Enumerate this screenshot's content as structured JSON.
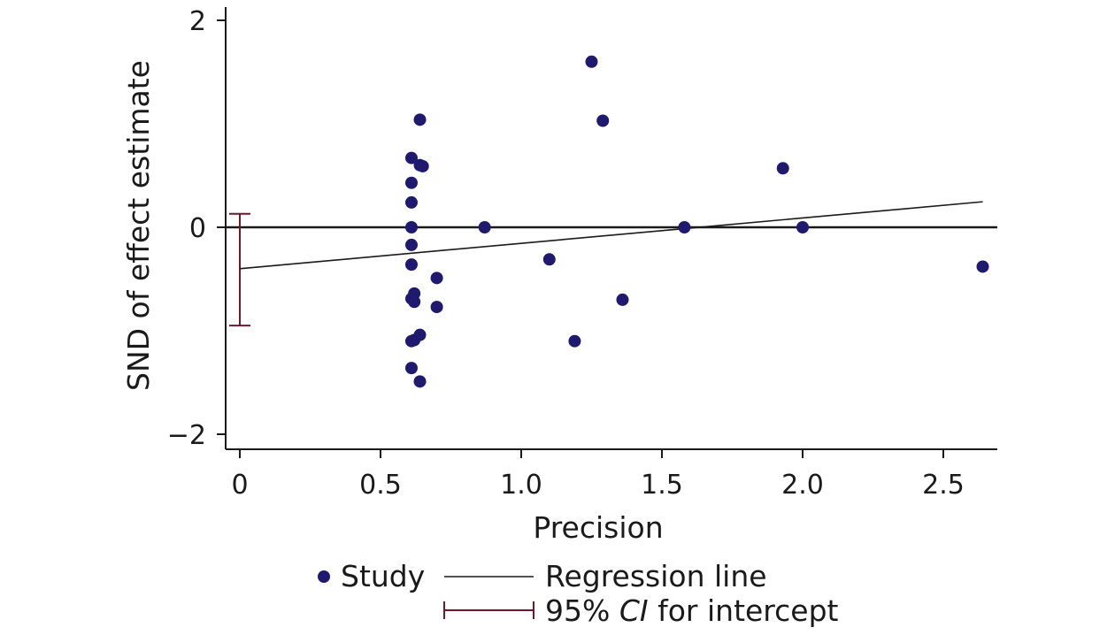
{
  "chart_data": {
    "type": "scatter",
    "xlabel": "Precision",
    "ylabel": "SND of effect estimate",
    "xlim": [
      -0.05,
      2.7
    ],
    "ylim": [
      -2.0,
      2.0
    ],
    "x_ticks": [
      0,
      0.5,
      1.0,
      1.5,
      2.0,
      2.5
    ],
    "x_tick_labels": [
      "0",
      "0.5",
      "1.0",
      "1.5",
      "2.0",
      "2.5"
    ],
    "y_ticks": [
      2,
      0,
      -2
    ],
    "y_tick_labels": [
      "2",
      "0",
      "−2"
    ],
    "reference_line_y": 0,
    "regression_line": {
      "intercept": -0.4,
      "slope": 0.245,
      "x_range": [
        0,
        2.64
      ]
    },
    "intercept_ci": {
      "x": 0,
      "lower": -0.95,
      "upper": 0.13
    },
    "points": [
      {
        "x": 0.61,
        "y": 0.67
      },
      {
        "x": 0.61,
        "y": 0.43
      },
      {
        "x": 0.61,
        "y": 0.24
      },
      {
        "x": 0.61,
        "y": 0.0
      },
      {
        "x": 0.61,
        "y": -0.17
      },
      {
        "x": 0.61,
        "y": -0.36
      },
      {
        "x": 0.61,
        "y": -0.69
      },
      {
        "x": 0.61,
        "y": -1.1
      },
      {
        "x": 0.61,
        "y": -1.36
      },
      {
        "x": 0.62,
        "y": -0.64
      },
      {
        "x": 0.62,
        "y": -0.72
      },
      {
        "x": 0.62,
        "y": -1.09
      },
      {
        "x": 0.64,
        "y": 1.04
      },
      {
        "x": 0.64,
        "y": 0.6
      },
      {
        "x": 0.65,
        "y": 0.59
      },
      {
        "x": 0.64,
        "y": -1.04
      },
      {
        "x": 0.64,
        "y": -1.49
      },
      {
        "x": 0.7,
        "y": -0.49
      },
      {
        "x": 0.7,
        "y": -0.77
      },
      {
        "x": 0.87,
        "y": 0.0
      },
      {
        "x": 1.1,
        "y": -0.31
      },
      {
        "x": 1.19,
        "y": -1.1
      },
      {
        "x": 1.25,
        "y": 1.6
      },
      {
        "x": 1.29,
        "y": 1.03
      },
      {
        "x": 1.36,
        "y": -0.7
      },
      {
        "x": 1.58,
        "y": 0.0
      },
      {
        "x": 1.93,
        "y": 0.57
      },
      {
        "x": 2.0,
        "y": 0.0
      },
      {
        "x": 2.64,
        "y": -0.38
      }
    ],
    "legend": {
      "placement": "bottom",
      "study": "Study",
      "regression": "Regression line",
      "ci_pre": "95% ",
      "ci_italic": "CI",
      "ci_post": " for intercept"
    },
    "colors": {
      "points": "#1f1a6e",
      "ci": "#6b1a2e",
      "line": "#1a1a1a"
    }
  }
}
